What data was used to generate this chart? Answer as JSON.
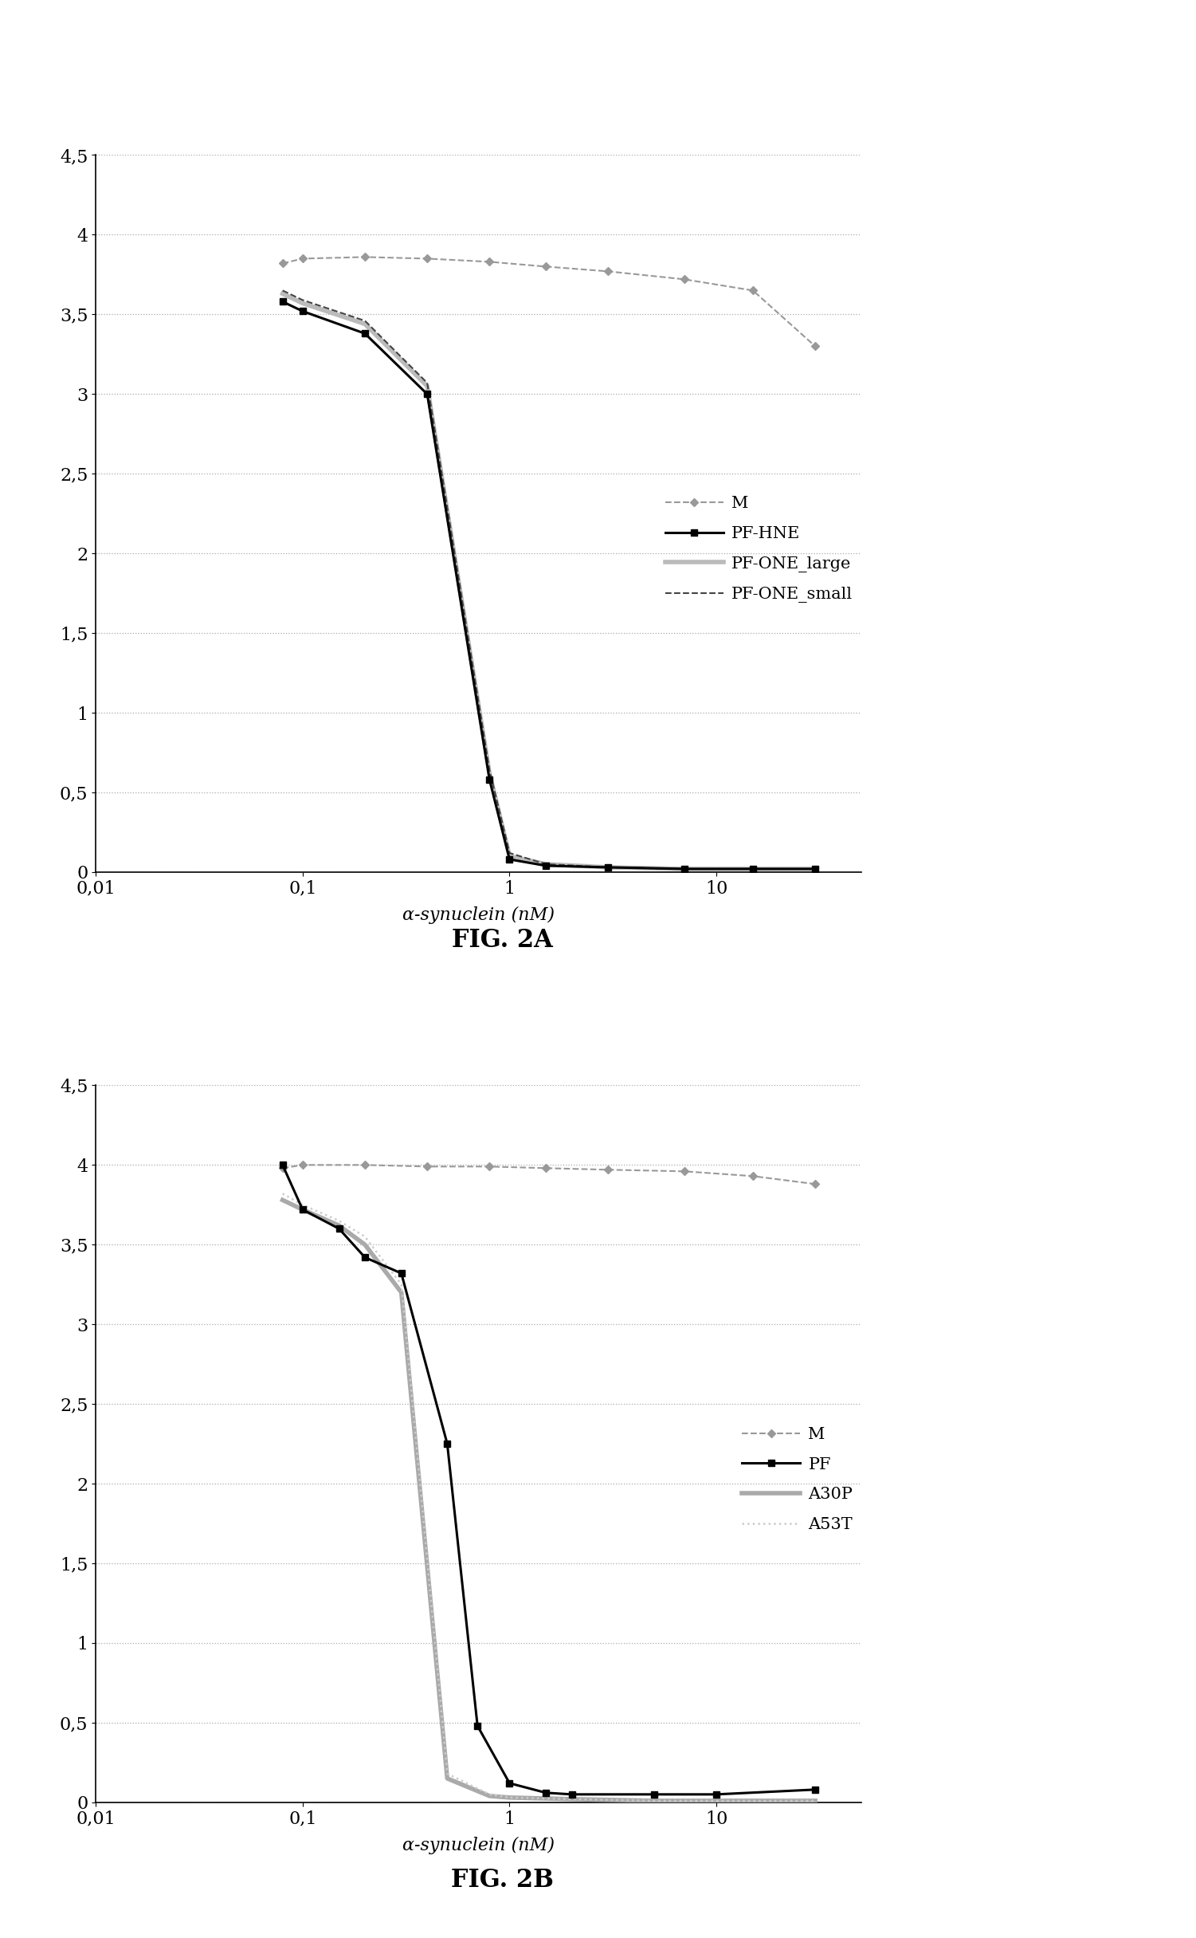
{
  "fig2a": {
    "title": "FIG. 2A",
    "xlabel": "α-synuclein (nM)",
    "ylim": [
      0,
      4.5
    ],
    "yticks": [
      0,
      0.5,
      1,
      1.5,
      2,
      2.5,
      3,
      3.5,
      4,
      4.5
    ],
    "xlim": [
      0.01,
      50
    ],
    "series": {
      "M": {
        "x": [
          0.08,
          0.1,
          0.2,
          0.4,
          0.8,
          1.5,
          3,
          7,
          15,
          30
        ],
        "y": [
          3.82,
          3.85,
          3.86,
          3.85,
          3.83,
          3.8,
          3.77,
          3.72,
          3.65,
          3.3
        ],
        "color": "#999999",
        "linestyle": "--",
        "marker": "D",
        "markersize": 5,
        "linewidth": 1.5,
        "zorder": 2
      },
      "PF-HNE": {
        "x": [
          0.08,
          0.1,
          0.2,
          0.4,
          0.8,
          1.0,
          1.5,
          3,
          7,
          15,
          30
        ],
        "y": [
          3.58,
          3.52,
          3.38,
          3.0,
          0.58,
          0.08,
          0.04,
          0.03,
          0.02,
          0.02,
          0.02
        ],
        "color": "#000000",
        "linestyle": "-",
        "marker": "s",
        "markersize": 6,
        "linewidth": 2.2,
        "zorder": 5
      },
      "PF-ONE_large": {
        "x": [
          0.08,
          0.1,
          0.2,
          0.4,
          0.8,
          1.0,
          1.5,
          3,
          7,
          15,
          30
        ],
        "y": [
          3.63,
          3.57,
          3.44,
          3.05,
          0.62,
          0.1,
          0.05,
          0.03,
          0.02,
          0.02,
          0.02
        ],
        "color": "#bbbbbb",
        "linestyle": "-",
        "marker": null,
        "markersize": 0,
        "linewidth": 4.0,
        "zorder": 3
      },
      "PF-ONE_small": {
        "x": [
          0.08,
          0.1,
          0.2,
          0.4,
          0.8,
          1.0,
          1.5,
          3,
          7,
          15,
          30
        ],
        "y": [
          3.65,
          3.59,
          3.46,
          3.07,
          0.64,
          0.12,
          0.05,
          0.03,
          0.02,
          0.02,
          0.02
        ],
        "color": "#444444",
        "linestyle": "--",
        "marker": null,
        "markersize": 0,
        "linewidth": 1.5,
        "zorder": 4
      }
    },
    "legend_order": [
      "M",
      "PF-HNE",
      "PF-ONE_large",
      "PF-ONE_small"
    ]
  },
  "fig2b": {
    "title": "FIG. 2B",
    "xlabel": "α-synuclein (nM)",
    "ylim": [
      0,
      4.5
    ],
    "yticks": [
      0,
      0.5,
      1,
      1.5,
      2,
      2.5,
      3,
      3.5,
      4,
      4.5
    ],
    "xlim": [
      0.01,
      50
    ],
    "series": {
      "M": {
        "x": [
          0.08,
          0.1,
          0.2,
          0.4,
          0.8,
          1.5,
          3,
          7,
          15,
          30
        ],
        "y": [
          3.98,
          4.0,
          4.0,
          3.99,
          3.99,
          3.98,
          3.97,
          3.96,
          3.93,
          3.88
        ],
        "color": "#999999",
        "linestyle": "--",
        "marker": "D",
        "markersize": 5,
        "linewidth": 1.5,
        "zorder": 2
      },
      "PF": {
        "x": [
          0.08,
          0.1,
          0.15,
          0.2,
          0.3,
          0.5,
          0.7,
          1.0,
          1.5,
          2,
          5,
          10,
          30
        ],
        "y": [
          4.0,
          3.72,
          3.6,
          3.42,
          3.32,
          2.25,
          0.48,
          0.12,
          0.06,
          0.05,
          0.05,
          0.05,
          0.08
        ],
        "color": "#000000",
        "linestyle": "-",
        "marker": "s",
        "markersize": 6,
        "linewidth": 2.2,
        "zorder": 5
      },
      "A30P": {
        "x": [
          0.08,
          0.1,
          0.15,
          0.2,
          0.3,
          0.5,
          0.8,
          1.0,
          2,
          5,
          10,
          30
        ],
        "y": [
          3.78,
          3.72,
          3.62,
          3.5,
          3.2,
          0.15,
          0.04,
          0.03,
          0.02,
          0.01,
          0.01,
          0.01
        ],
        "color": "#aaaaaa",
        "linestyle": "-",
        "marker": null,
        "markersize": 0,
        "linewidth": 4.0,
        "zorder": 3
      },
      "A53T": {
        "x": [
          0.08,
          0.1,
          0.15,
          0.2,
          0.3,
          0.5,
          0.8,
          1.0,
          2,
          5,
          10,
          30
        ],
        "y": [
          3.82,
          3.75,
          3.65,
          3.55,
          3.25,
          0.18,
          0.05,
          0.03,
          0.02,
          0.01,
          0.01,
          0.01
        ],
        "color": "#cccccc",
        "linestyle": ":",
        "marker": null,
        "markersize": 0,
        "linewidth": 1.8,
        "zorder": 4
      }
    },
    "legend_order": [
      "M",
      "PF",
      "A30P",
      "A53T"
    ]
  },
  "background_color": "#ffffff",
  "font_family": "DejaVu Serif"
}
